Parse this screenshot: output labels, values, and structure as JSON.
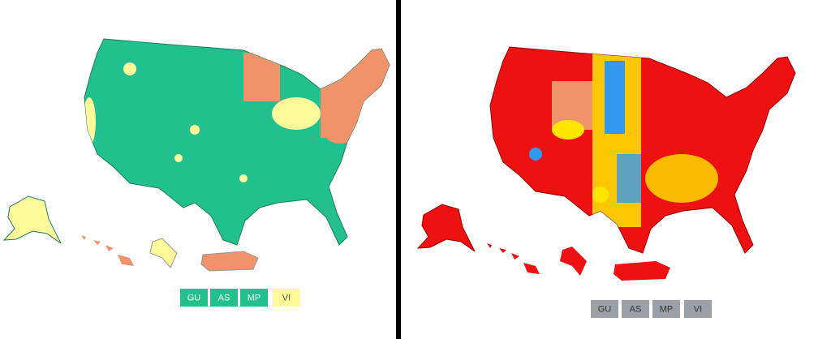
{
  "left_map": {
    "territories": [
      {
        "label": "GU",
        "color": "#22bf8f"
      },
      {
        "label": "AS",
        "color": "#22bf8f"
      },
      {
        "label": "MP",
        "color": "#22bf8f"
      },
      {
        "label": "VI",
        "color": "#fff99a"
      }
    ]
  },
  "right_map": {
    "territories": [
      {
        "label": "GU",
        "color": "#9aa0a6"
      },
      {
        "label": "AS",
        "color": "#9aa0a6"
      },
      {
        "label": "MP",
        "color": "#9aa0a6"
      },
      {
        "label": "VI",
        "color": "#9aa0a6"
      }
    ]
  }
}
